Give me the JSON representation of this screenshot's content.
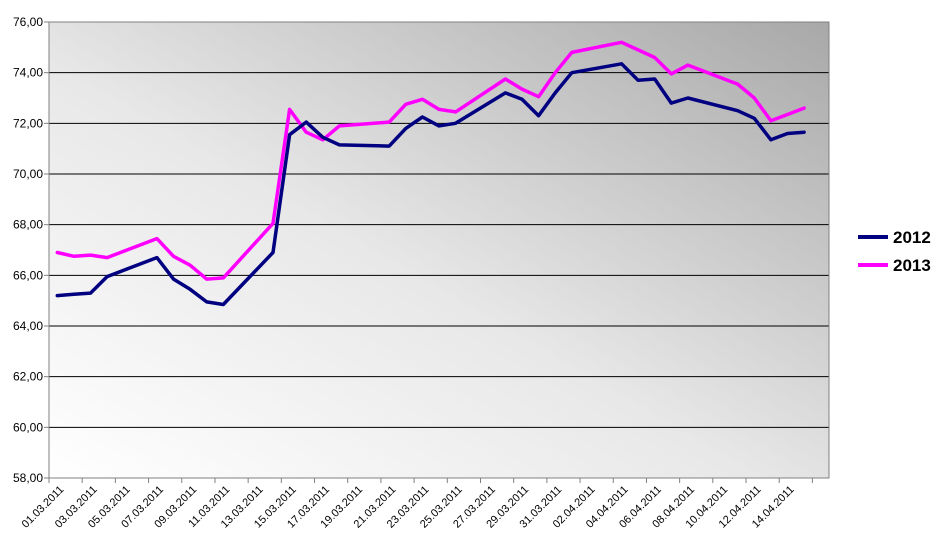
{
  "chart_data": {
    "type": "line",
    "title": "",
    "xlabel": "",
    "ylabel": "",
    "ylim": [
      58,
      76
    ],
    "yticks": [
      "58,00",
      "60,00",
      "62,00",
      "64,00",
      "66,00",
      "68,00",
      "70,00",
      "72,00",
      "74,00",
      "76,00"
    ],
    "grid": true,
    "legend_position": "right",
    "x_tick_labels": [
      "01.03.2011",
      "03.03.2011",
      "05.03.2011",
      "07.03.2011",
      "09.03.2011",
      "11.03.2011",
      "13.03.2011",
      "15.03.2011",
      "17.03.2011",
      "19.03.2011",
      "21.03.2011",
      "23.03.2011",
      "25.03.2011",
      "27.03.2011",
      "29.03.2011",
      "31.03.2011",
      "02.04.2011",
      "04.04.2011",
      "06.04.2011",
      "08.04.2011",
      "10.04.2011",
      "12.04.2011",
      "14.04.2011"
    ],
    "x": [
      "01.03.2011",
      "02.03.2011",
      "03.03.2011",
      "04.03.2011",
      "07.03.2011",
      "08.03.2011",
      "09.03.2011",
      "10.03.2011",
      "11.03.2011",
      "14.03.2011",
      "15.03.2011",
      "16.03.2011",
      "17.03.2011",
      "18.03.2011",
      "21.03.2011",
      "22.03.2011",
      "23.03.2011",
      "24.03.2011",
      "25.03.2011",
      "28.03.2011",
      "29.03.2011",
      "30.03.2011",
      "31.03.2011",
      "01.04.2011",
      "04.04.2011",
      "05.04.2011",
      "06.04.2011",
      "07.04.2011",
      "08.04.2011",
      "11.04.2011",
      "12.04.2011",
      "13.04.2011",
      "14.04.2011",
      "15.04.2011"
    ],
    "series": [
      {
        "name": "2012",
        "color": "#000080",
        "values": [
          65.2,
          65.25,
          65.3,
          65.95,
          66.7,
          65.85,
          65.45,
          64.95,
          64.85,
          66.9,
          71.55,
          72.05,
          71.45,
          71.15,
          71.1,
          71.8,
          72.25,
          71.9,
          72.0,
          73.2,
          72.95,
          72.3,
          73.2,
          74.0,
          74.35,
          73.7,
          73.75,
          72.8,
          73.0,
          72.5,
          72.2,
          71.35,
          71.6,
          71.65
        ]
      },
      {
        "name": "2013",
        "color": "#ff00ff",
        "values": [
          66.9,
          66.75,
          66.8,
          66.7,
          67.45,
          66.75,
          66.4,
          65.85,
          65.9,
          68.05,
          72.55,
          71.65,
          71.35,
          71.9,
          72.05,
          72.75,
          72.95,
          72.55,
          72.45,
          73.75,
          73.35,
          73.05,
          74.0,
          74.8,
          75.2,
          74.9,
          74.6,
          73.95,
          74.3,
          73.55,
          73.0,
          72.1,
          72.35,
          72.6
        ]
      }
    ]
  }
}
